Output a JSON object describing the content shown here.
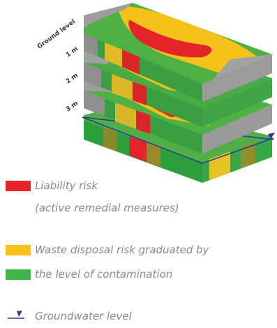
{
  "diagram": {
    "depth_labels": [
      "Ground level",
      "1 m",
      "2 m",
      "3 m"
    ]
  },
  "legend": {
    "liability_line1": "Liability risk",
    "liability_line2": "(active remedial measures)",
    "waste_line1": "Waste disposal risk graduated by",
    "waste_line2": "the level of contamination",
    "groundwater": "Groundwater level"
  },
  "colors": {
    "red": "#e3242b",
    "yellow": "#f6c21a",
    "green": "#3fb549",
    "grey": "#a3a3a3",
    "olive": "#8a8a2a",
    "groundwater_line": "#2b3a9a",
    "legend_text": "#8a8a8a"
  }
}
